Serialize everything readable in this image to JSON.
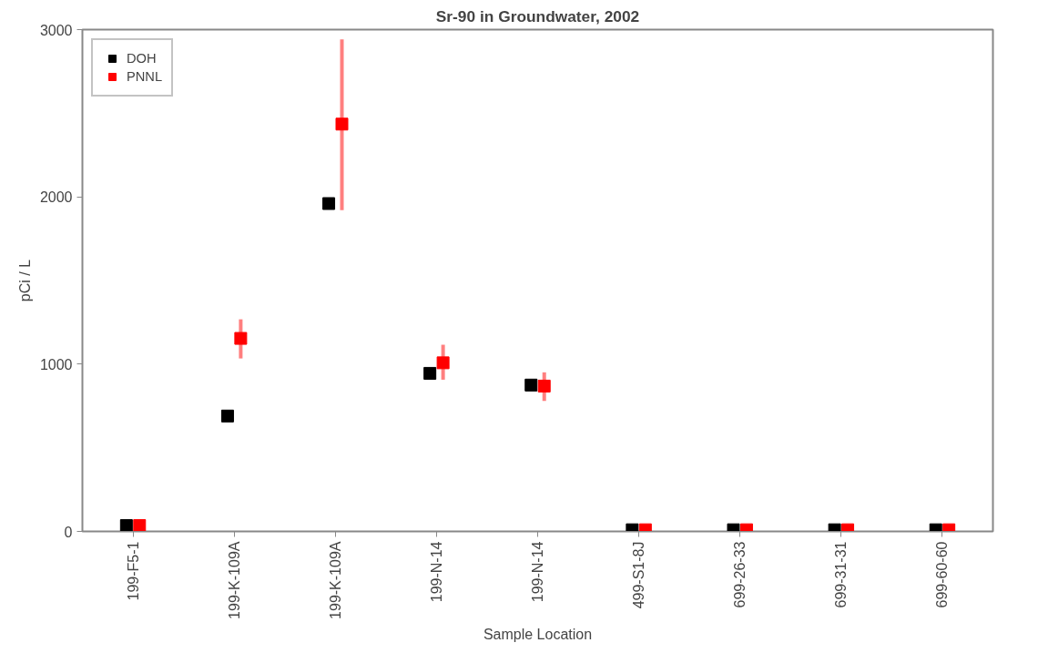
{
  "chart_data": {
    "type": "scatter",
    "title": "Sr-90 in Groundwater, 2002",
    "xlabel": "Sample Location",
    "ylabel": "pCi / L",
    "categories": [
      "199-F5-1",
      "199-K-109A",
      "199-K-109A",
      "199-N-14",
      "199-N-14",
      "499-S1-8J",
      "699-26-33",
      "699-31-31",
      "699-60-60"
    ],
    "series": [
      {
        "name": "DOH",
        "color": "#000000",
        "values": [
          35,
          690,
          1960,
          945,
          875,
          10,
          10,
          10,
          10
        ]
      },
      {
        "name": "PNNL",
        "color": "#ff0000",
        "values": [
          35,
          1154,
          2435,
          1008,
          869,
          10,
          10,
          10,
          10
        ],
        "errors": [
          null,
          [
            1034,
            1268
          ],
          [
            1921,
            2942
          ],
          [
            907,
            1116
          ],
          [
            780,
            951
          ],
          null,
          null,
          null,
          null
        ]
      }
    ],
    "ylim": [
      0,
      3000
    ],
    "yticks": [
      0,
      1000,
      2000,
      3000
    ],
    "grid": false,
    "legend": "top left",
    "marker": "square"
  }
}
